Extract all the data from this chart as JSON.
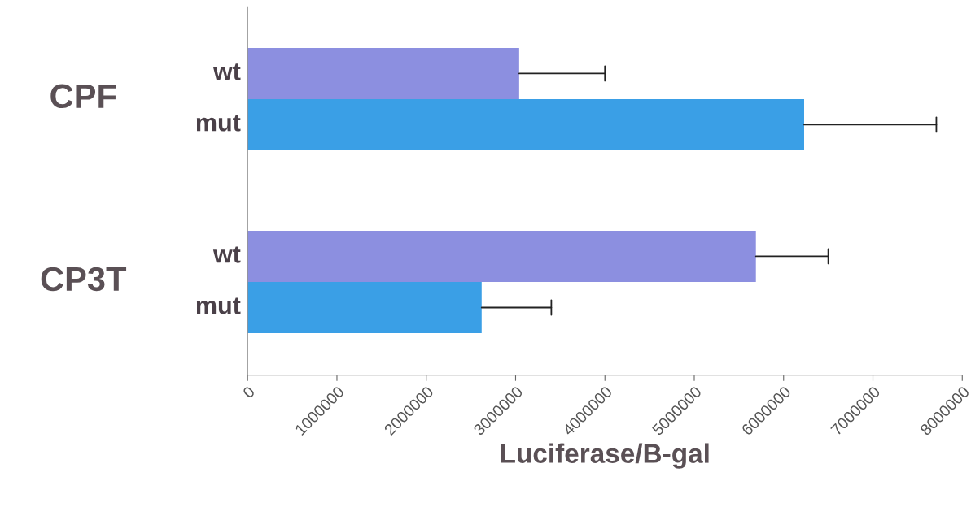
{
  "chart_data": {
    "type": "bar",
    "orientation": "horizontal",
    "xlabel": "Luciferase/B-gal",
    "categories": [
      "CPF",
      "CP3T"
    ],
    "series": [
      {
        "name": "wt",
        "color": "#8c8fe0",
        "values": [
          3040000,
          5690000
        ],
        "errors": [
          [
            3040000,
            4000000
          ],
          [
            5690000,
            6500000
          ]
        ]
      },
      {
        "name": "mut",
        "color": "#3a9fe6",
        "values": [
          6230000,
          2620000
        ],
        "errors": [
          [
            6230000,
            7710000
          ],
          [
            2620000,
            3400000
          ]
        ]
      }
    ],
    "xlim": [
      0,
      8000000
    ],
    "xticks": [
      0,
      1000000,
      2000000,
      3000000,
      4000000,
      5000000,
      6000000,
      7000000,
      8000000
    ],
    "grid": false,
    "legend": false
  }
}
